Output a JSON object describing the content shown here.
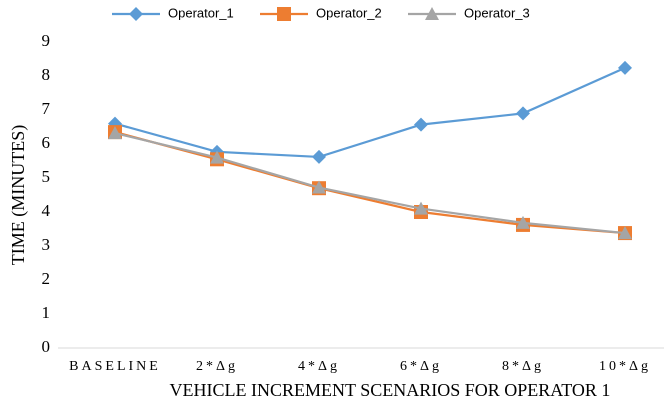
{
  "chart_data": {
    "type": "line",
    "x_label": "VEHICLE INCREMENT SCENARIOS FOR OPERATOR 1",
    "y_label": "TIME (MINUTES)",
    "categories": [
      "BASELINE",
      "2*Δg",
      "4*Δg",
      "6*Δg",
      "8*Δg",
      "10*Δg"
    ],
    "series": [
      {
        "name": "Operator_1",
        "color": "#5b9bd5",
        "marker": "diamond",
        "values": [
          6.6,
          5.77,
          5.62,
          6.57,
          6.9,
          8.24
        ]
      },
      {
        "name": "Operator_2",
        "color": "#ed7d31",
        "marker": "square",
        "values": [
          6.35,
          5.55,
          4.7,
          4.0,
          3.62,
          3.38
        ]
      },
      {
        "name": "Operator_3",
        "color": "#a5a5a5",
        "marker": "triangle",
        "values": [
          6.32,
          5.6,
          4.72,
          4.1,
          3.68,
          3.38
        ]
      }
    ],
    "ylim": [
      0,
      9
    ],
    "yticks": [
      0,
      1,
      2,
      3,
      4,
      5,
      6,
      7,
      8,
      9
    ],
    "grid": false,
    "legend": "top"
  }
}
